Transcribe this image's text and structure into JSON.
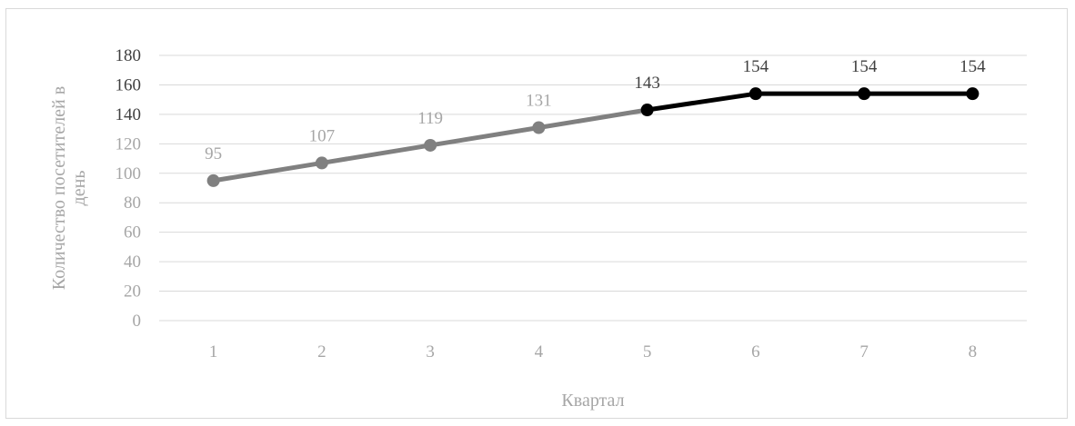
{
  "chart_data": {
    "type": "line",
    "categories": [
      "1",
      "2",
      "3",
      "4",
      "5",
      "6",
      "7",
      "8"
    ],
    "series": [
      {
        "name": "",
        "segments": [
          {
            "from": 1,
            "to": 5,
            "color": "#808080"
          },
          {
            "from": 5,
            "to": 8,
            "color": "#000000"
          }
        ],
        "values": [
          95,
          107,
          119,
          131,
          143,
          154,
          154,
          154
        ],
        "labels": [
          "95",
          "107",
          "119",
          "131",
          "143",
          "154",
          "154",
          "154"
        ]
      }
    ],
    "title": "",
    "xlabel": "Квартал",
    "ylabel_line1": "Количество посетителей в",
    "ylabel_line2": "день",
    "ylim": [
      0,
      180
    ],
    "yticks": [
      "0",
      "20",
      "40",
      "60",
      "80",
      "100",
      "120",
      "140",
      "160",
      "180"
    ],
    "grid": "horizontal",
    "colors": {
      "gray_series": "#808080",
      "black_series": "#000000",
      "grid": "#d9d9d9",
      "gray_text": "#a6a6a6",
      "dark_text": "#404040"
    }
  }
}
